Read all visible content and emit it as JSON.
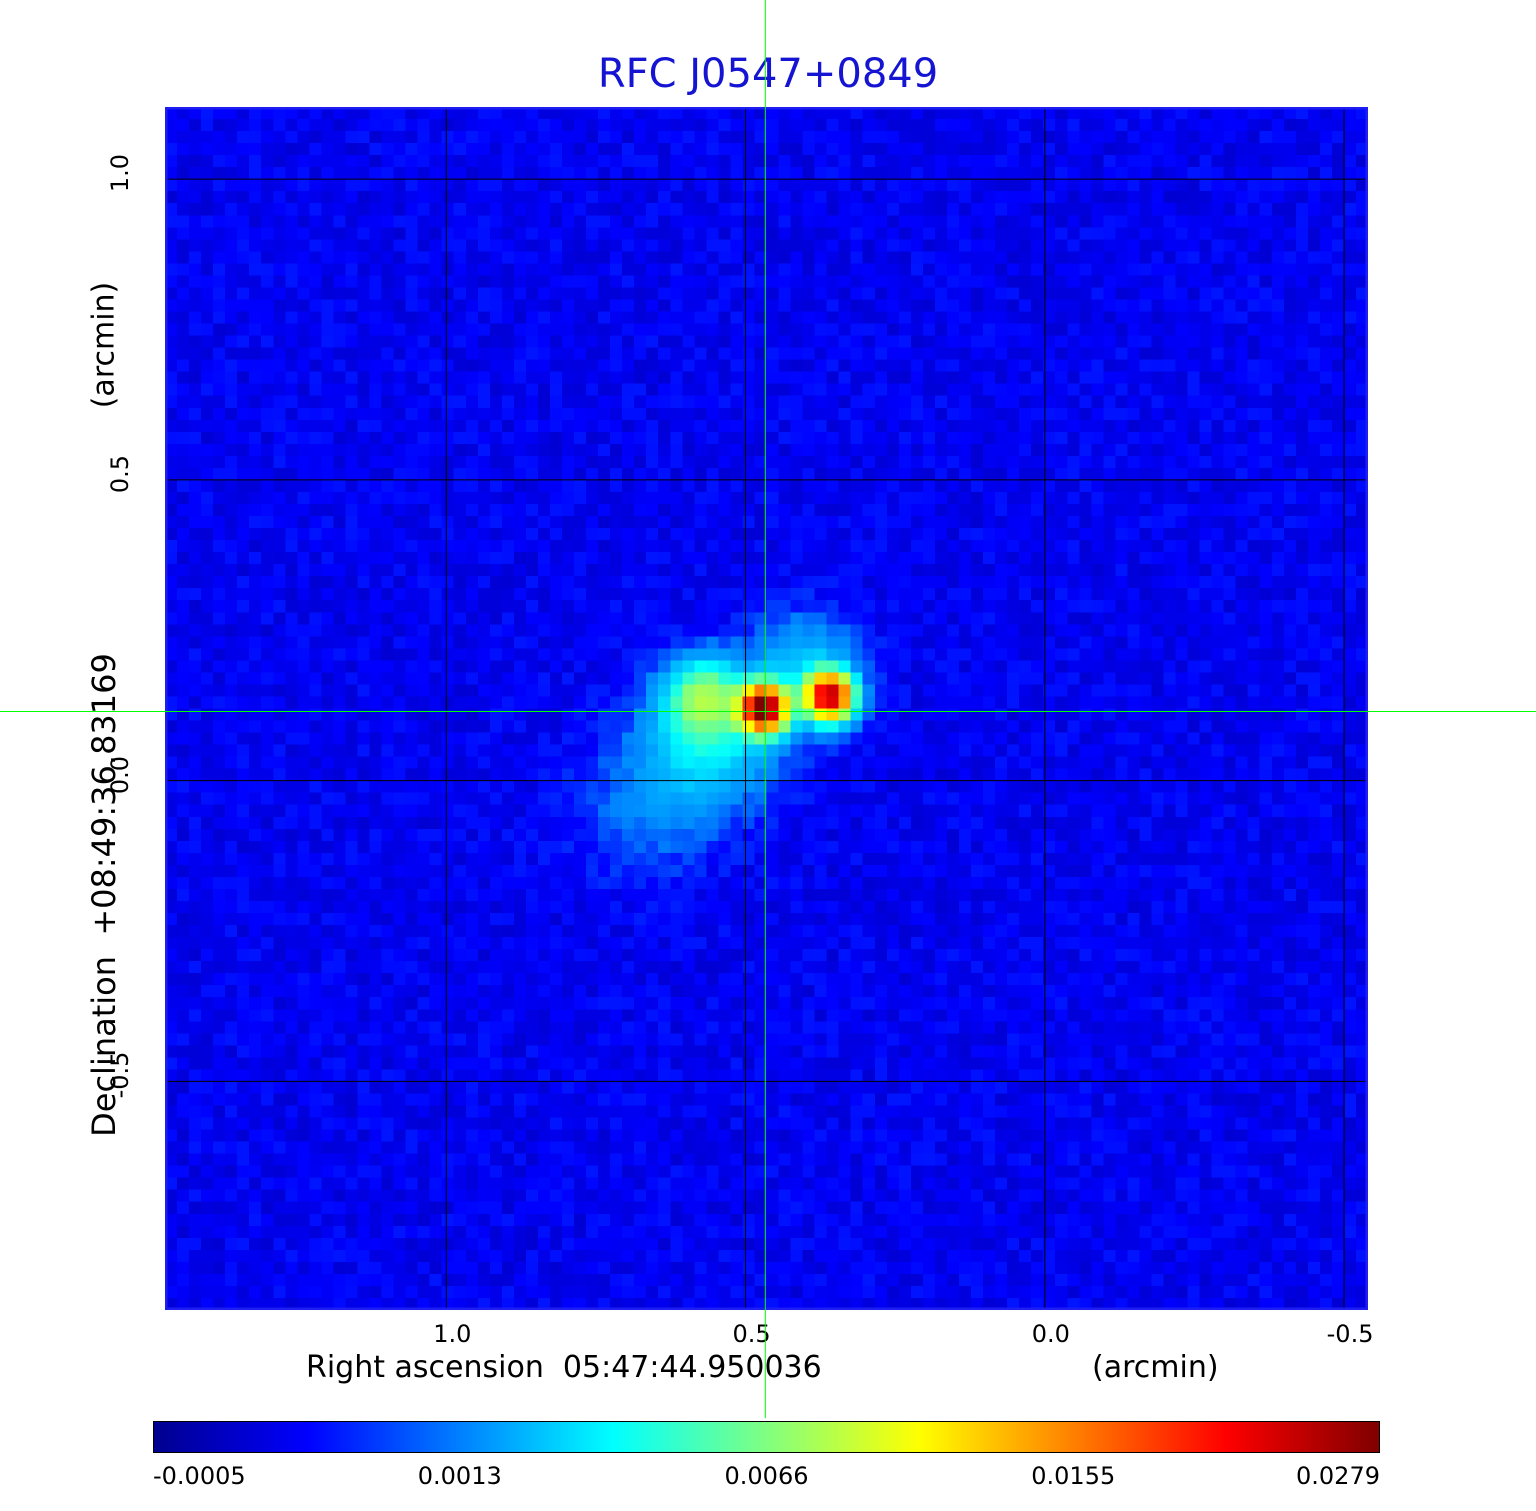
{
  "colors": {
    "title": "#1414d2",
    "crosshair": "#00ff00",
    "grid": "#000000",
    "colormap": [
      "#00008f",
      "#0000ff",
      "#0080ff",
      "#00ffff",
      "#80ff80",
      "#ffff00",
      "#ff8000",
      "#ff0000",
      "#800000"
    ]
  },
  "chart_data": {
    "type": "heatmap",
    "title": "RFC J0547+0849",
    "xlabel": "Right ascension  05:47:44.950036",
    "xunit": "(arcmin)",
    "ylabel": "Declination  +08:49:36.83169",
    "yunit": "(arcmin)",
    "x_ticks": [
      "1.0",
      "0.5",
      "0.0",
      "-0.5"
    ],
    "y_ticks": [
      "1.0",
      "0.5",
      "0.0",
      "-0.5"
    ],
    "xlim": [
      1.47,
      -0.54
    ],
    "ylim": [
      -0.88,
      1.12
    ],
    "grid": true,
    "colorbar": {
      "ticks": [
        "-0.0005",
        "0.0013",
        "0.0066",
        "0.0155",
        "0.0279"
      ],
      "range": [
        -0.0005,
        0.0279
      ]
    },
    "background_level": 0.0003,
    "sources": [
      {
        "x": 0.47,
        "y": 0.12,
        "peak": 0.0279,
        "sigma": 0.025
      },
      {
        "x": 0.36,
        "y": 0.14,
        "peak": 0.024,
        "sigma": 0.025
      },
      {
        "x": 0.57,
        "y": 0.14,
        "peak": 0.006,
        "sigma": 0.04
      },
      {
        "x": 0.56,
        "y": 0.07,
        "peak": 0.0035,
        "sigma": 0.07
      },
      {
        "x": 0.4,
        "y": 0.18,
        "peak": 0.0025,
        "sigma": 0.06
      },
      {
        "x": 0.66,
        "y": -0.04,
        "peak": 0.001,
        "sigma": 0.08
      }
    ],
    "crosshair": {
      "x": 0.467,
      "y": 0.115
    }
  }
}
